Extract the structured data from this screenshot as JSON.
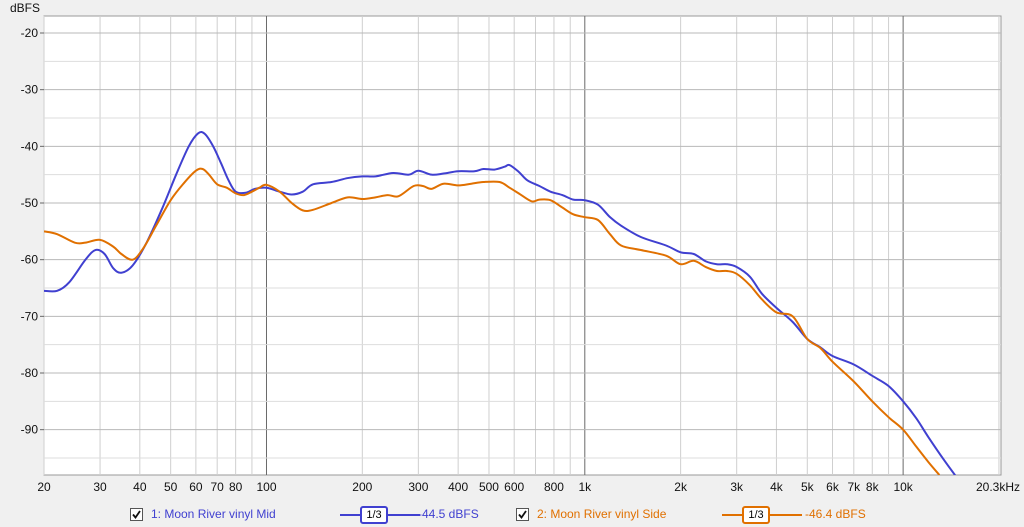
{
  "chart_data": {
    "type": "line",
    "ylabel": "dBFS",
    "y_ticks": [
      -20,
      -30,
      -40,
      -50,
      -60,
      -70,
      -80,
      -90
    ],
    "ylim": [
      -98,
      -17
    ],
    "xlim": [
      20,
      20300
    ],
    "x_scale": "log",
    "x_tick_labels": [
      {
        "value": 20,
        "label": "20"
      },
      {
        "value": 30,
        "label": "30"
      },
      {
        "value": 40,
        "label": "40"
      },
      {
        "value": 50,
        "label": "50"
      },
      {
        "value": 60,
        "label": "60"
      },
      {
        "value": 70,
        "label": "70"
      },
      {
        "value": 80,
        "label": "80"
      },
      {
        "value": 100,
        "label": "100"
      },
      {
        "value": 200,
        "label": "200"
      },
      {
        "value": 300,
        "label": "300"
      },
      {
        "value": 400,
        "label": "400"
      },
      {
        "value": 500,
        "label": "500"
      },
      {
        "value": 600,
        "label": "600"
      },
      {
        "value": 800,
        "label": "800"
      },
      {
        "value": 1000,
        "label": "1k"
      },
      {
        "value": 2000,
        "label": "2k"
      },
      {
        "value": 3000,
        "label": "3k"
      },
      {
        "value": 4000,
        "label": "4k"
      },
      {
        "value": 5000,
        "label": "5k"
      },
      {
        "value": 6000,
        "label": "6k"
      },
      {
        "value": 7000,
        "label": "7k"
      },
      {
        "value": 8000,
        "label": "8k"
      },
      {
        "value": 10000,
        "label": "10k"
      },
      {
        "value": 20300,
        "label": "20.3kHz"
      }
    ],
    "series": [
      {
        "name": "1: Moon River vinyl Mid",
        "color": "#4040d0",
        "points": [
          [
            20,
            -65.5
          ],
          [
            22,
            -65.5
          ],
          [
            24,
            -64
          ],
          [
            27,
            -60
          ],
          [
            29,
            -58.3
          ],
          [
            31,
            -59
          ],
          [
            33,
            -61.5
          ],
          [
            35,
            -62.3
          ],
          [
            38,
            -61
          ],
          [
            42,
            -57
          ],
          [
            47,
            -51
          ],
          [
            52,
            -45
          ],
          [
            57,
            -40
          ],
          [
            61,
            -37.7
          ],
          [
            64,
            -37.8
          ],
          [
            68,
            -40
          ],
          [
            72,
            -43
          ],
          [
            76,
            -46
          ],
          [
            80,
            -48
          ],
          [
            86,
            -48.2
          ],
          [
            92,
            -47.5
          ],
          [
            100,
            -47.3
          ],
          [
            110,
            -48
          ],
          [
            120,
            -48.5
          ],
          [
            130,
            -48
          ],
          [
            140,
            -46.7
          ],
          [
            160,
            -46.3
          ],
          [
            180,
            -45.6
          ],
          [
            200,
            -45.3
          ],
          [
            220,
            -45.3
          ],
          [
            250,
            -44.7
          ],
          [
            280,
            -45
          ],
          [
            300,
            -44.3
          ],
          [
            330,
            -45
          ],
          [
            360,
            -44.8
          ],
          [
            400,
            -44.4
          ],
          [
            450,
            -44.4
          ],
          [
            480,
            -44
          ],
          [
            520,
            -44.1
          ],
          [
            560,
            -43.6
          ],
          [
            580,
            -43.3
          ],
          [
            620,
            -44.5
          ],
          [
            660,
            -46
          ],
          [
            720,
            -47
          ],
          [
            780,
            -48
          ],
          [
            850,
            -48.6
          ],
          [
            920,
            -49.4
          ],
          [
            1000,
            -49.5
          ],
          [
            1100,
            -50.3
          ],
          [
            1200,
            -52.5
          ],
          [
            1300,
            -54
          ],
          [
            1500,
            -56
          ],
          [
            1800,
            -57.5
          ],
          [
            2000,
            -58.7
          ],
          [
            2200,
            -59
          ],
          [
            2400,
            -60.3
          ],
          [
            2600,
            -60.8
          ],
          [
            2800,
            -60.8
          ],
          [
            3000,
            -61.3
          ],
          [
            3300,
            -63
          ],
          [
            3600,
            -66
          ],
          [
            4000,
            -68.5
          ],
          [
            4500,
            -71
          ],
          [
            5000,
            -74
          ],
          [
            5500,
            -75.5
          ],
          [
            6000,
            -77
          ],
          [
            7000,
            -78.5
          ],
          [
            8000,
            -80.5
          ],
          [
            9000,
            -82.3
          ],
          [
            10000,
            -85
          ],
          [
            11000,
            -88
          ],
          [
            12000,
            -91.3
          ],
          [
            13500,
            -95.5
          ],
          [
            15000,
            -99
          ]
        ]
      },
      {
        "name": "2: Moon River vinyl Side",
        "color": "#e07000",
        "points": [
          [
            20,
            -55
          ],
          [
            22,
            -55.5
          ],
          [
            25,
            -57
          ],
          [
            27,
            -57
          ],
          [
            30,
            -56.5
          ],
          [
            33,
            -57.7
          ],
          [
            35,
            -59
          ],
          [
            38,
            -60
          ],
          [
            41,
            -58
          ],
          [
            45,
            -54
          ],
          [
            50,
            -49.5
          ],
          [
            55,
            -46.5
          ],
          [
            60,
            -44.3
          ],
          [
            63,
            -44
          ],
          [
            66,
            -45
          ],
          [
            70,
            -46.7
          ],
          [
            75,
            -47.3
          ],
          [
            80,
            -48.3
          ],
          [
            85,
            -48.6
          ],
          [
            90,
            -48
          ],
          [
            95,
            -47.3
          ],
          [
            100,
            -46.8
          ],
          [
            110,
            -48
          ],
          [
            120,
            -50
          ],
          [
            130,
            -51.3
          ],
          [
            140,
            -51.2
          ],
          [
            160,
            -50
          ],
          [
            180,
            -49
          ],
          [
            200,
            -49.3
          ],
          [
            220,
            -49
          ],
          [
            240,
            -48.6
          ],
          [
            260,
            -48.8
          ],
          [
            290,
            -47
          ],
          [
            310,
            -47
          ],
          [
            330,
            -47.5
          ],
          [
            360,
            -46.6
          ],
          [
            400,
            -46.9
          ],
          [
            440,
            -46.6
          ],
          [
            480,
            -46.3
          ],
          [
            540,
            -46.3
          ],
          [
            580,
            -47.3
          ],
          [
            620,
            -48.3
          ],
          [
            680,
            -49.7
          ],
          [
            720,
            -49.4
          ],
          [
            780,
            -49.5
          ],
          [
            850,
            -50.8
          ],
          [
            920,
            -52
          ],
          [
            1000,
            -52.5
          ],
          [
            1100,
            -53
          ],
          [
            1200,
            -55.5
          ],
          [
            1300,
            -57.5
          ],
          [
            1500,
            -58.3
          ],
          [
            1800,
            -59.3
          ],
          [
            2000,
            -60.8
          ],
          [
            2200,
            -60.2
          ],
          [
            2400,
            -61.3
          ],
          [
            2600,
            -62
          ],
          [
            2800,
            -62
          ],
          [
            3000,
            -62.5
          ],
          [
            3300,
            -64.5
          ],
          [
            3600,
            -67
          ],
          [
            4000,
            -69.3
          ],
          [
            4500,
            -70
          ],
          [
            5000,
            -74
          ],
          [
            5500,
            -75.6
          ],
          [
            6000,
            -78
          ],
          [
            7000,
            -81.5
          ],
          [
            8000,
            -85
          ],
          [
            9000,
            -87.8
          ],
          [
            10000,
            -90
          ],
          [
            11000,
            -93
          ],
          [
            12000,
            -95.7
          ],
          [
            13000,
            -98
          ]
        ]
      }
    ]
  },
  "legend": [
    {
      "checked": true,
      "label": "1: Moon River vinyl Mid",
      "smoothing": "1/3",
      "level": "-44.5 dBFS",
      "color": "#4040d0"
    },
    {
      "checked": true,
      "label": "2: Moon River vinyl Side",
      "smoothing": "1/3",
      "level": "-46.4 dBFS",
      "color": "#e07000"
    }
  ]
}
